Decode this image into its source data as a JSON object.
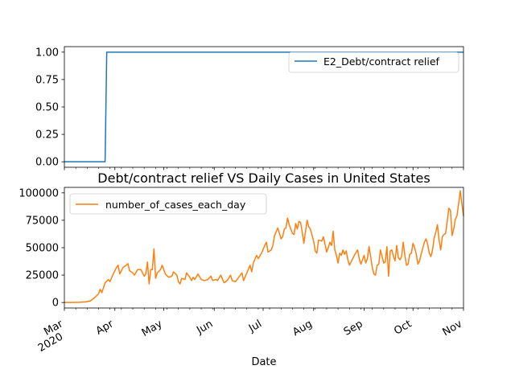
{
  "colors": {
    "series1": "#1f77b4",
    "series2": "#ff7f0e",
    "axis": "#000000"
  },
  "chart_data": [
    {
      "type": "line",
      "title": "",
      "xlabel": "",
      "ylabel": "",
      "ylim": [
        -0.05,
        1.05
      ],
      "yticks": [
        0.0,
        0.25,
        0.5,
        0.75,
        1.0
      ],
      "ytick_labels": [
        "0.00",
        "0.25",
        "0.50",
        "0.75",
        "1.00"
      ],
      "grid": false,
      "legend_position": "upper right",
      "series": [
        {
          "name": "E2_Debt/contract relief",
          "color": "#1f77b4",
          "points": [
            [
              "2020-03-01",
              0
            ],
            [
              "2020-03-26",
              0
            ],
            [
              "2020-03-27",
              1
            ],
            [
              "2020-11-01",
              1
            ]
          ]
        }
      ]
    },
    {
      "type": "line",
      "title": "Debt/contract relief VS Daily Cases in United States",
      "xlabel": "Date",
      "ylabel": "",
      "ylim": [
        -5000,
        105000
      ],
      "yticks": [
        0,
        25000,
        50000,
        75000,
        100000
      ],
      "ytick_labels": [
        "0",
        "25000",
        "50000",
        "75000",
        "100000"
      ],
      "grid": false,
      "legend_position": "upper left",
      "xlim": [
        "2020-03-01",
        "2020-11-01"
      ],
      "x_ticks": [
        {
          "date": "2020-03-01",
          "label": "Mar",
          "sublabel": "2020"
        },
        {
          "date": "2020-04-01",
          "label": "Apr",
          "sublabel": ""
        },
        {
          "date": "2020-05-01",
          "label": "May",
          "sublabel": ""
        },
        {
          "date": "2020-06-01",
          "label": "Jun",
          "sublabel": ""
        },
        {
          "date": "2020-07-01",
          "label": "Jul",
          "sublabel": ""
        },
        {
          "date": "2020-08-01",
          "label": "Aug",
          "sublabel": ""
        },
        {
          "date": "2020-09-01",
          "label": "Sep",
          "sublabel": ""
        },
        {
          "date": "2020-10-01",
          "label": "Oct",
          "sublabel": ""
        },
        {
          "date": "2020-11-01",
          "label": "Nov",
          "sublabel": ""
        }
      ],
      "series": [
        {
          "name": "number_of_cases_each_day",
          "color": "#ff7f0e",
          "points": [
            [
              "2020-03-01",
              0
            ],
            [
              "2020-03-05",
              0
            ],
            [
              "2020-03-10",
              200
            ],
            [
              "2020-03-14",
              600
            ],
            [
              "2020-03-17",
              1500
            ],
            [
              "2020-03-20",
              5000
            ],
            [
              "2020-03-22",
              8000
            ],
            [
              "2020-03-23",
              12000
            ],
            [
              "2020-03-24",
              9000
            ],
            [
              "2020-03-26",
              18000
            ],
            [
              "2020-03-28",
              21000
            ],
            [
              "2020-03-29",
              19000
            ],
            [
              "2020-03-31",
              26000
            ],
            [
              "2020-04-02",
              32000
            ],
            [
              "2020-04-03",
              34000
            ],
            [
              "2020-04-04",
              26000
            ],
            [
              "2020-04-06",
              32000
            ],
            [
              "2020-04-08",
              34000
            ],
            [
              "2020-04-09",
              35500
            ],
            [
              "2020-04-10",
              29000
            ],
            [
              "2020-04-12",
              27000
            ],
            [
              "2020-04-13",
              25000
            ],
            [
              "2020-04-15",
              30000
            ],
            [
              "2020-04-17",
              30000
            ],
            [
              "2020-04-19",
              24000
            ],
            [
              "2020-04-20",
              26000
            ],
            [
              "2020-04-21",
              37000
            ],
            [
              "2020-04-22",
              17000
            ],
            [
              "2020-04-23",
              30000
            ],
            [
              "2020-04-24",
              30000
            ],
            [
              "2020-04-25",
              49000
            ],
            [
              "2020-04-26",
              22000
            ],
            [
              "2020-04-27",
              27000
            ],
            [
              "2020-04-29",
              30000
            ],
            [
              "2020-04-30",
              34000
            ],
            [
              "2020-05-02",
              26000
            ],
            [
              "2020-05-04",
              23000
            ],
            [
              "2020-05-06",
              24000
            ],
            [
              "2020-05-07",
              28000
            ],
            [
              "2020-05-09",
              25000
            ],
            [
              "2020-05-10",
              19000
            ],
            [
              "2020-05-11",
              17000
            ],
            [
              "2020-05-12",
              22000
            ],
            [
              "2020-05-14",
              21000
            ],
            [
              "2020-05-15",
              27000
            ],
            [
              "2020-05-17",
              23000
            ],
            [
              "2020-05-18",
              20000
            ],
            [
              "2020-05-19",
              23000
            ],
            [
              "2020-05-20",
              21000
            ],
            [
              "2020-05-22",
              26000
            ],
            [
              "2020-05-24",
              21000
            ],
            [
              "2020-05-26",
              20000
            ],
            [
              "2020-05-28",
              21000
            ],
            [
              "2020-05-30",
              24000
            ],
            [
              "2020-05-31",
              20000
            ],
            [
              "2020-06-02",
              21000
            ],
            [
              "2020-06-03",
              20000
            ],
            [
              "2020-06-05",
              25000
            ],
            [
              "2020-06-07",
              18000
            ],
            [
              "2020-06-09",
              20000
            ],
            [
              "2020-06-11",
              25000
            ],
            [
              "2020-06-12",
              20000
            ],
            [
              "2020-06-14",
              19000
            ],
            [
              "2020-06-16",
              23000
            ],
            [
              "2020-06-18",
              27000
            ],
            [
              "2020-06-19",
              20000
            ],
            [
              "2020-06-21",
              27000
            ],
            [
              "2020-06-23",
              34000
            ],
            [
              "2020-06-24",
              28000
            ],
            [
              "2020-06-25",
              36000
            ],
            [
              "2020-06-27",
              43000
            ],
            [
              "2020-06-28",
              40000
            ],
            [
              "2020-06-30",
              45000
            ],
            [
              "2020-07-02",
              52000
            ],
            [
              "2020-07-03",
              55000
            ],
            [
              "2020-07-04",
              46000
            ],
            [
              "2020-07-06",
              48000
            ],
            [
              "2020-07-07",
              52000
            ],
            [
              "2020-07-08",
              61000
            ],
            [
              "2020-07-10",
              68000
            ],
            [
              "2020-07-12",
              58000
            ],
            [
              "2020-07-13",
              60000
            ],
            [
              "2020-07-14",
              67000
            ],
            [
              "2020-07-15",
              68000
            ],
            [
              "2020-07-16",
              77000
            ],
            [
              "2020-07-17",
              71000
            ],
            [
              "2020-07-19",
              63000
            ],
            [
              "2020-07-20",
              62000
            ],
            [
              "2020-07-21",
              72000
            ],
            [
              "2020-07-22",
              67000
            ],
            [
              "2020-07-23",
              74000
            ],
            [
              "2020-07-24",
              73000
            ],
            [
              "2020-07-25",
              64000
            ],
            [
              "2020-07-26",
              54000
            ],
            [
              "2020-07-28",
              75000
            ],
            [
              "2020-07-29",
              69000
            ],
            [
              "2020-07-30",
              67000
            ],
            [
              "2020-08-01",
              56000
            ],
            [
              "2020-08-02",
              47000
            ],
            [
              "2020-08-03",
              45000
            ],
            [
              "2020-08-04",
              57000
            ],
            [
              "2020-08-06",
              56000
            ],
            [
              "2020-08-07",
              60000
            ],
            [
              "2020-08-08",
              53000
            ],
            [
              "2020-08-09",
              46000
            ],
            [
              "2020-08-10",
              50000
            ],
            [
              "2020-08-11",
              55000
            ],
            [
              "2020-08-12",
              52000
            ],
            [
              "2020-08-13",
              65000
            ],
            [
              "2020-08-14",
              48000
            ],
            [
              "2020-08-15",
              43000
            ],
            [
              "2020-08-16",
              36000
            ],
            [
              "2020-08-17",
              45000
            ],
            [
              "2020-08-18",
              43000
            ],
            [
              "2020-08-19",
              48000
            ],
            [
              "2020-08-20",
              44000
            ],
            [
              "2020-08-21",
              47000
            ],
            [
              "2020-08-22",
              39000
            ],
            [
              "2020-08-23",
              34000
            ],
            [
              "2020-08-24",
              37000
            ],
            [
              "2020-08-26",
              43000
            ],
            [
              "2020-08-28",
              48000
            ],
            [
              "2020-08-29",
              40000
            ],
            [
              "2020-08-30",
              35000
            ],
            [
              "2020-09-01",
              43000
            ],
            [
              "2020-09-02",
              36000
            ],
            [
              "2020-09-03",
              40000
            ],
            [
              "2020-09-04",
              51000
            ],
            [
              "2020-09-05",
              42000
            ],
            [
              "2020-09-06",
              32000
            ],
            [
              "2020-09-07",
              26000
            ],
            [
              "2020-09-08",
              25000
            ],
            [
              "2020-09-09",
              34000
            ],
            [
              "2020-09-10",
              35000
            ],
            [
              "2020-09-11",
              48000
            ],
            [
              "2020-09-12",
              42000
            ],
            [
              "2020-09-13",
              36000
            ],
            [
              "2020-09-14",
              37000
            ],
            [
              "2020-09-15",
              51000
            ],
            [
              "2020-09-16",
              24000
            ],
            [
              "2020-09-17",
              47000
            ],
            [
              "2020-09-18",
              48000
            ],
            [
              "2020-09-19",
              42000
            ],
            [
              "2020-09-20",
              38000
            ],
            [
              "2020-09-21",
              52000
            ],
            [
              "2020-09-22",
              41000
            ],
            [
              "2020-09-23",
              39000
            ],
            [
              "2020-09-24",
              42000
            ],
            [
              "2020-09-25",
              55000
            ],
            [
              "2020-09-26",
              43000
            ],
            [
              "2020-09-27",
              34000
            ],
            [
              "2020-09-28",
              35000
            ],
            [
              "2020-09-29",
              44000
            ],
            [
              "2020-09-30",
              45000
            ],
            [
              "2020-10-01",
              54000
            ],
            [
              "2020-10-02",
              50000
            ],
            [
              "2020-10-03",
              44000
            ],
            [
              "2020-10-04",
              35000
            ],
            [
              "2020-10-05",
              38000
            ],
            [
              "2020-10-06",
              44000
            ],
            [
              "2020-10-08",
              55000
            ],
            [
              "2020-10-09",
              58000
            ],
            [
              "2020-10-10",
              53000
            ],
            [
              "2020-10-11",
              45000
            ],
            [
              "2020-10-12",
              42000
            ],
            [
              "2020-10-13",
              48000
            ],
            [
              "2020-10-14",
              59000
            ],
            [
              "2020-10-15",
              64000
            ],
            [
              "2020-10-16",
              71000
            ],
            [
              "2020-10-17",
              57000
            ],
            [
              "2020-10-18",
              48000
            ],
            [
              "2020-10-19",
              60000
            ],
            [
              "2020-10-20",
              62000
            ],
            [
              "2020-10-21",
              63000
            ],
            [
              "2020-10-22",
              74000
            ],
            [
              "2020-10-23",
              86000
            ],
            [
              "2020-10-24",
              84000
            ],
            [
              "2020-10-25",
              61000
            ],
            [
              "2020-10-26",
              67000
            ],
            [
              "2020-10-27",
              76000
            ],
            [
              "2020-10-28",
              79000
            ],
            [
              "2020-10-29",
              90000
            ],
            [
              "2020-10-30",
              102000
            ],
            [
              "2020-10-31",
              90000
            ],
            [
              "2020-11-01",
              79000
            ]
          ]
        }
      ]
    }
  ]
}
